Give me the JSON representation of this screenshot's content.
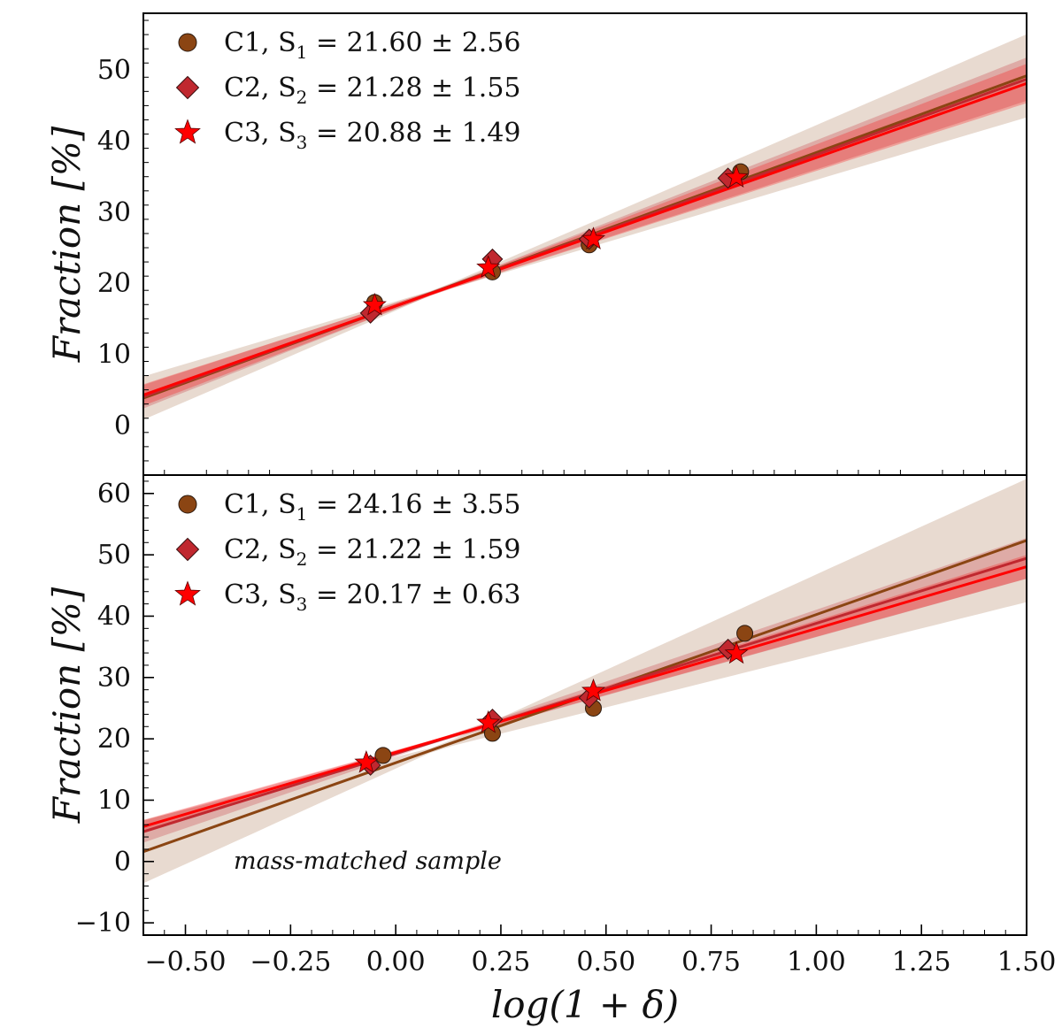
{
  "chart_data": [
    {
      "type": "scatter",
      "panel": "top",
      "xlabel": "log(1 + δ)",
      "ylabel": "Fraction [%]",
      "xlim": [
        -0.6,
        1.5
      ],
      "ylim": [
        -7,
        58
      ],
      "xticks": [
        -0.5,
        -0.25,
        0.0,
        0.25,
        0.5,
        0.75,
        1.0,
        1.25,
        1.5
      ],
      "yticks": [
        0,
        10,
        20,
        30,
        40,
        50
      ],
      "annotation": "",
      "series": [
        {
          "name": "C1",
          "marker": "circle",
          "color": "#8B4513",
          "legend_prefix": "C1,  S",
          "legend_sub": "1",
          "legend_value": " = 21.60 ± 2.56",
          "x": [
            -0.05,
            0.23,
            0.46,
            0.82
          ],
          "y": [
            17.3,
            21.6,
            25.4,
            35.7
          ],
          "fit_intercept": 16.8,
          "fit_slope": 21.6,
          "band": 4.0
        },
        {
          "name": "C2",
          "marker": "diamond",
          "color": "#C0282F",
          "legend_prefix": "C2,  S",
          "legend_sub": "2",
          "legend_value": " = 21.28 ± 1.55",
          "x": [
            -0.06,
            0.23,
            0.46,
            0.79
          ],
          "y": [
            15.8,
            23.4,
            26.2,
            34.8
          ],
          "fit_intercept": 16.8,
          "fit_slope": 21.28,
          "band": 2.0
        },
        {
          "name": "C3",
          "marker": "star",
          "color": "#FF0000",
          "legend_prefix": "C3,  S",
          "legend_sub": "3",
          "legend_value": " = 20.88 ± 1.49",
          "x": [
            -0.05,
            0.22,
            0.47,
            0.81
          ],
          "y": [
            16.9,
            22.2,
            26.2,
            34.9
          ],
          "fit_intercept": 16.8,
          "fit_slope": 20.88,
          "band": 1.8
        }
      ]
    },
    {
      "type": "scatter",
      "panel": "bottom",
      "xlabel": "log(1 + δ)",
      "ylabel": "Fraction [%]",
      "xlim": [
        -0.6,
        1.5
      ],
      "ylim": [
        -12,
        63
      ],
      "xticks": [
        -0.5,
        -0.25,
        0.0,
        0.25,
        0.5,
        0.75,
        1.0,
        1.25,
        1.5
      ],
      "yticks": [
        -10,
        0,
        10,
        20,
        30,
        40,
        50,
        60
      ],
      "annotation": "mass-matched sample",
      "series": [
        {
          "name": "C1",
          "marker": "circle",
          "color": "#8B4513",
          "legend_prefix": "C1,  S",
          "legend_sub": "1",
          "legend_value": " = 24.16 ± 3.55",
          "x": [
            -0.03,
            0.23,
            0.47,
            0.83
          ],
          "y": [
            17.3,
            20.9,
            25.0,
            37.2
          ],
          "fit_intercept": 16.1,
          "fit_slope": 24.16,
          "band": 7.0
        },
        {
          "name": "C2",
          "marker": "diamond",
          "color": "#C0282F",
          "legend_prefix": "C2,  S",
          "legend_sub": "2",
          "legend_value": " = 21.22 ± 1.59",
          "x": [
            -0.06,
            0.23,
            0.46,
            0.79
          ],
          "y": [
            15.7,
            23.2,
            26.7,
            34.6
          ],
          "fit_intercept": 17.6,
          "fit_slope": 21.22,
          "band": 2.2
        },
        {
          "name": "C3",
          "marker": "star",
          "color": "#FF0000",
          "legend_prefix": "C3,  S",
          "legend_sub": "3",
          "legend_value": " = 20.17 ± 0.63",
          "x": [
            -0.07,
            0.22,
            0.47,
            0.81
          ],
          "y": [
            16.1,
            22.6,
            27.8,
            33.9
          ],
          "fit_intercept": 17.8,
          "fit_slope": 20.17,
          "band": 1.2
        }
      ]
    }
  ]
}
